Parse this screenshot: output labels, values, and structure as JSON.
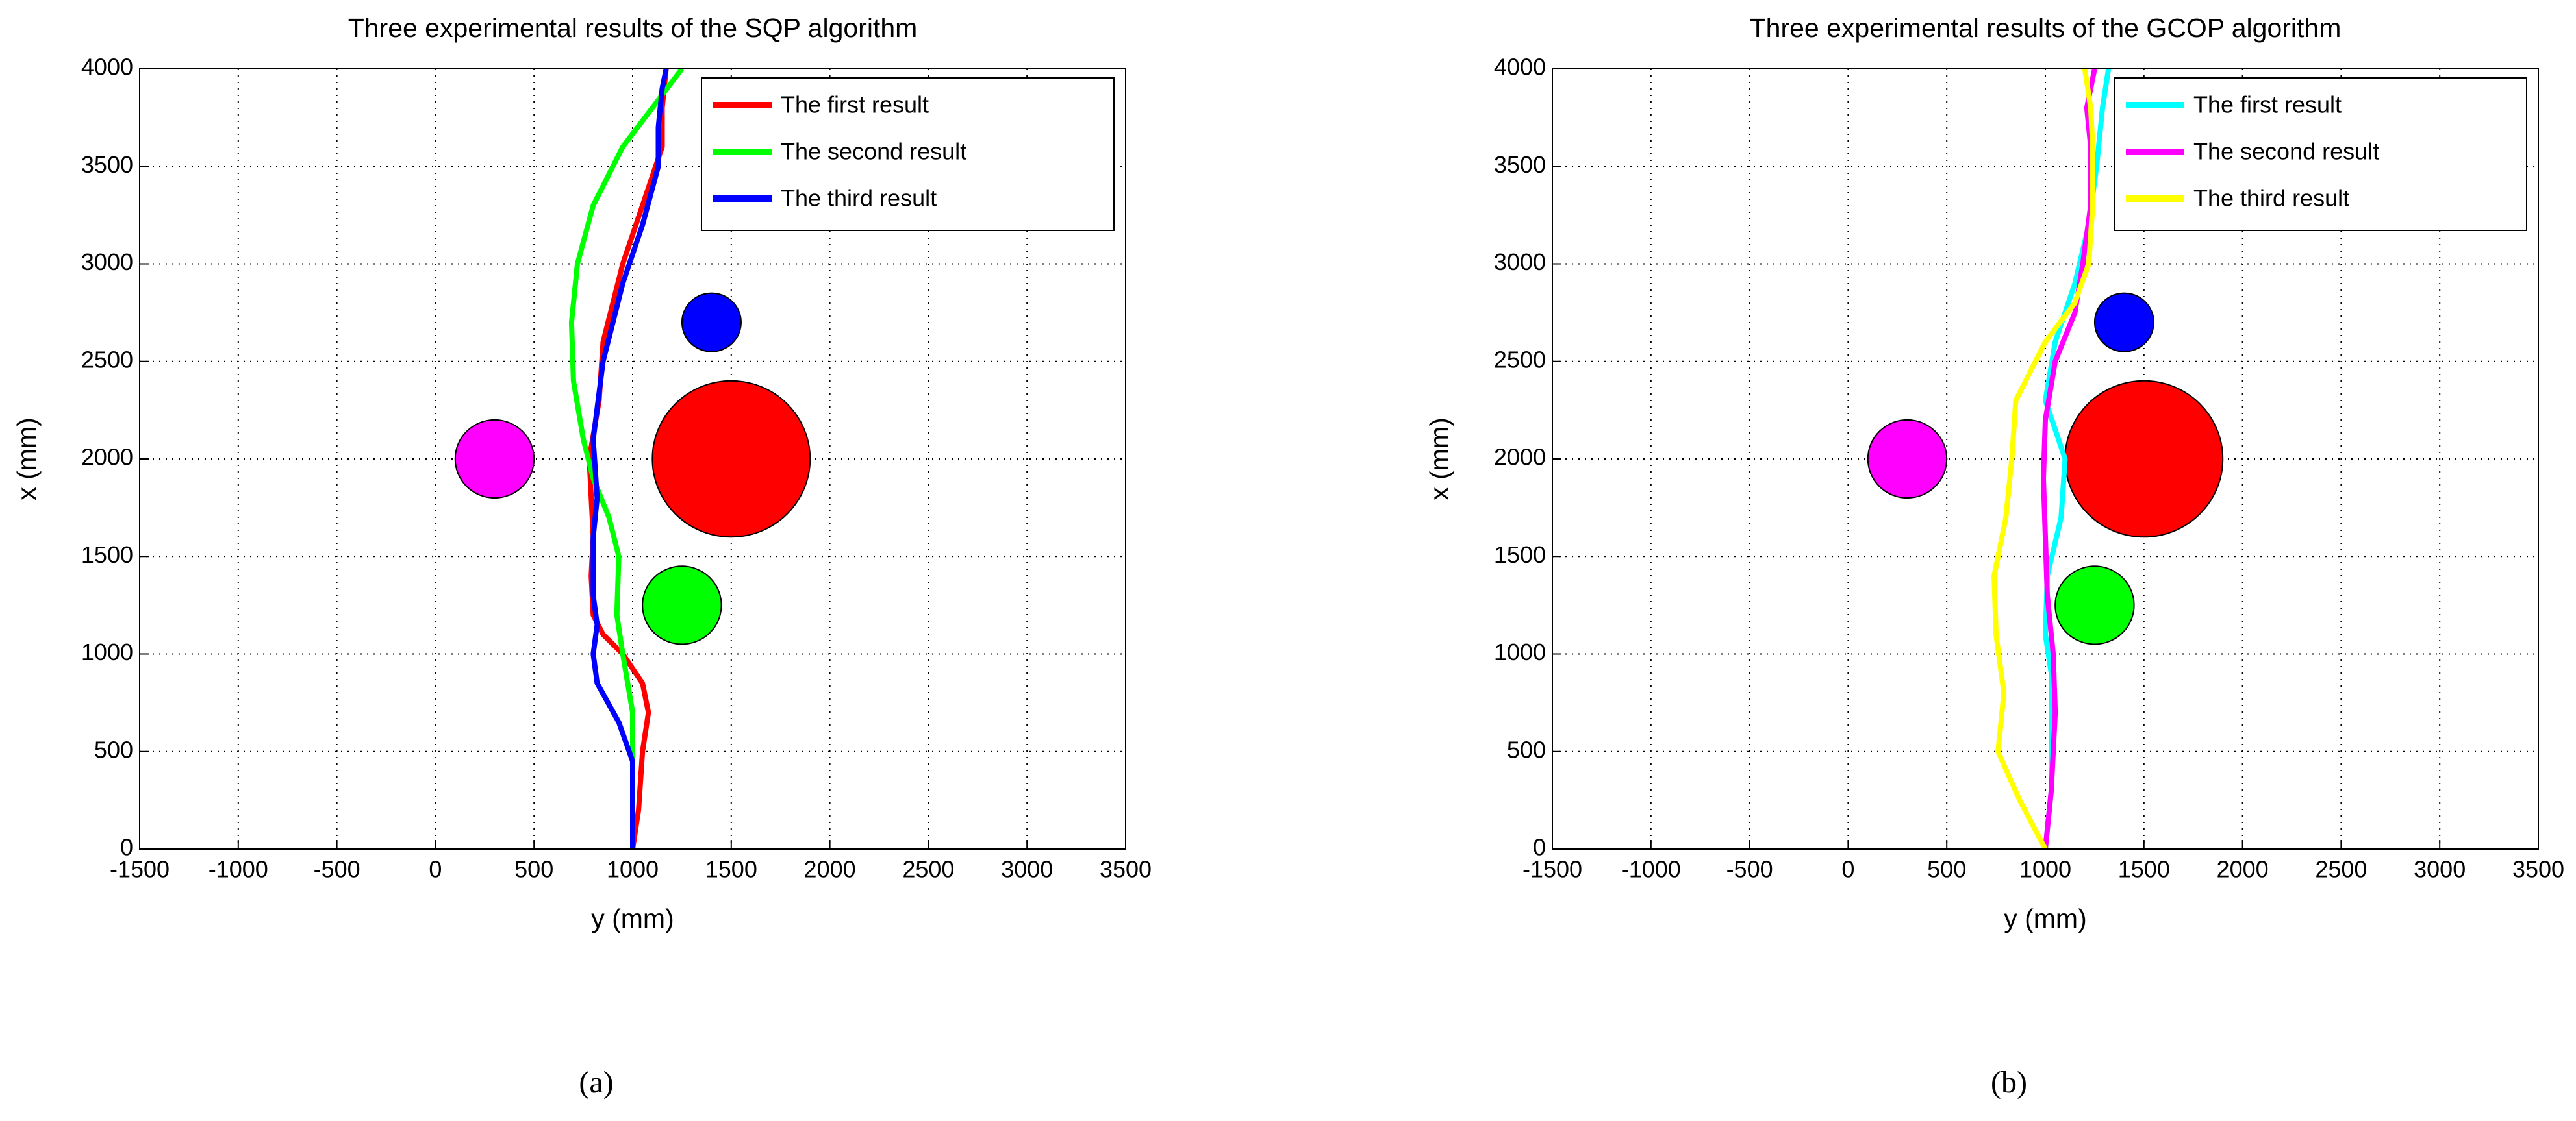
{
  "chart_data": [
    {
      "type": "line",
      "title": "Three experimental results of the SQP algorithm",
      "xlabel": "y (mm)",
      "ylabel": "x (mm)",
      "caption": "(a)",
      "xlim": [
        -1500,
        3500
      ],
      "xticks": [
        -1500,
        -1000,
        -500,
        0,
        500,
        1000,
        1500,
        2000,
        2500,
        3000,
        3500
      ],
      "ylim": [
        0,
        4000
      ],
      "yticks": [
        0,
        500,
        1000,
        1500,
        2000,
        2500,
        3000,
        3500,
        4000
      ],
      "grid": true,
      "legend": "upper-right",
      "obstacles": [
        {
          "x": 300,
          "y": 2000,
          "r": 200,
          "color": "#ff00ff"
        },
        {
          "x": 1500,
          "y": 2000,
          "r": 400,
          "color": "#ff0000"
        },
        {
          "x": 1400,
          "y": 2700,
          "r": 150,
          "color": "#0000ff"
        },
        {
          "x": 1250,
          "y": 1250,
          "r": 200,
          "color": "#00ff00"
        }
      ],
      "series": [
        {
          "name": "The first result",
          "color": "#ff0000",
          "x": [
            1000,
            1030,
            1050,
            1080,
            1050,
            950,
            850,
            800,
            790,
            800,
            780,
            830,
            850,
            950,
            1050,
            1150,
            1150,
            1170
          ],
          "y": [
            0,
            200,
            500,
            700,
            850,
            1000,
            1100,
            1200,
            1400,
            1600,
            2000,
            2300,
            2600,
            3000,
            3300,
            3600,
            3800,
            4000
          ]
        },
        {
          "name": "The second result",
          "color": "#00ff00",
          "x": [
            1000,
            1000,
            1000,
            950,
            920,
            930,
            880,
            800,
            750,
            700,
            690,
            720,
            800,
            950,
            1100,
            1250
          ],
          "y": [
            0,
            400,
            700,
            1000,
            1200,
            1500,
            1700,
            1900,
            2100,
            2400,
            2700,
            3000,
            3300,
            3600,
            3800,
            4000
          ]
        },
        {
          "name": "The third result",
          "color": "#0000ff",
          "x": [
            1000,
            1000,
            1000,
            930,
            820,
            800,
            820,
            800,
            800,
            820,
            800,
            850,
            950,
            1050,
            1130,
            1130,
            1150,
            1170
          ],
          "y": [
            0,
            200,
            450,
            650,
            850,
            1000,
            1150,
            1300,
            1600,
            1800,
            2100,
            2500,
            2900,
            3200,
            3500,
            3700,
            3900,
            4000
          ]
        }
      ]
    },
    {
      "type": "line",
      "title": "Three experimental results of the GCOP algorithm",
      "xlabel": "y (mm)",
      "ylabel": "x (mm)",
      "caption": "(b)",
      "xlim": [
        -1500,
        3500
      ],
      "xticks": [
        -1500,
        -1000,
        -500,
        0,
        500,
        1000,
        1500,
        2000,
        2500,
        3000,
        3500
      ],
      "ylim": [
        0,
        4000
      ],
      "yticks": [
        0,
        500,
        1000,
        1500,
        2000,
        2500,
        3000,
        3500,
        4000
      ],
      "grid": true,
      "legend": "upper-right",
      "obstacles": [
        {
          "x": 300,
          "y": 2000,
          "r": 200,
          "color": "#ff00ff"
        },
        {
          "x": 1500,
          "y": 2000,
          "r": 400,
          "color": "#ff0000"
        },
        {
          "x": 1400,
          "y": 2700,
          "r": 150,
          "color": "#0000ff"
        },
        {
          "x": 1250,
          "y": 1250,
          "r": 200,
          "color": "#00ff00"
        }
      ],
      "series": [
        {
          "name": "The first result",
          "color": "#00ffff",
          "x": [
            1000,
            1030,
            1030,
            1030,
            1000,
            1010,
            1080,
            1100,
            1000,
            1050,
            1150,
            1220,
            1260,
            1290,
            1320
          ],
          "y": [
            0,
            300,
            700,
            900,
            1100,
            1400,
            1700,
            2000,
            2300,
            2600,
            2900,
            3200,
            3500,
            3800,
            4000
          ]
        },
        {
          "name": "The second result",
          "color": "#ff00ff",
          "x": [
            1000,
            1030,
            1050,
            1040,
            1010,
            1000,
            990,
            1000,
            1050,
            1150,
            1190,
            1230,
            1230,
            1210,
            1250
          ],
          "y": [
            0,
            300,
            700,
            1000,
            1300,
            1600,
            1900,
            2200,
            2500,
            2750,
            3000,
            3300,
            3600,
            3800,
            4000
          ]
        },
        {
          "name": "The third result",
          "color": "#ffff00",
          "x": [
            1000,
            870,
            760,
            790,
            750,
            740,
            800,
            830,
            850,
            1000,
            1150,
            1220,
            1240,
            1240,
            1230,
            1200
          ],
          "y": [
            0,
            250,
            500,
            800,
            1100,
            1400,
            1700,
            2000,
            2300,
            2600,
            2800,
            3000,
            3300,
            3600,
            3800,
            4000
          ]
        }
      ]
    }
  ]
}
